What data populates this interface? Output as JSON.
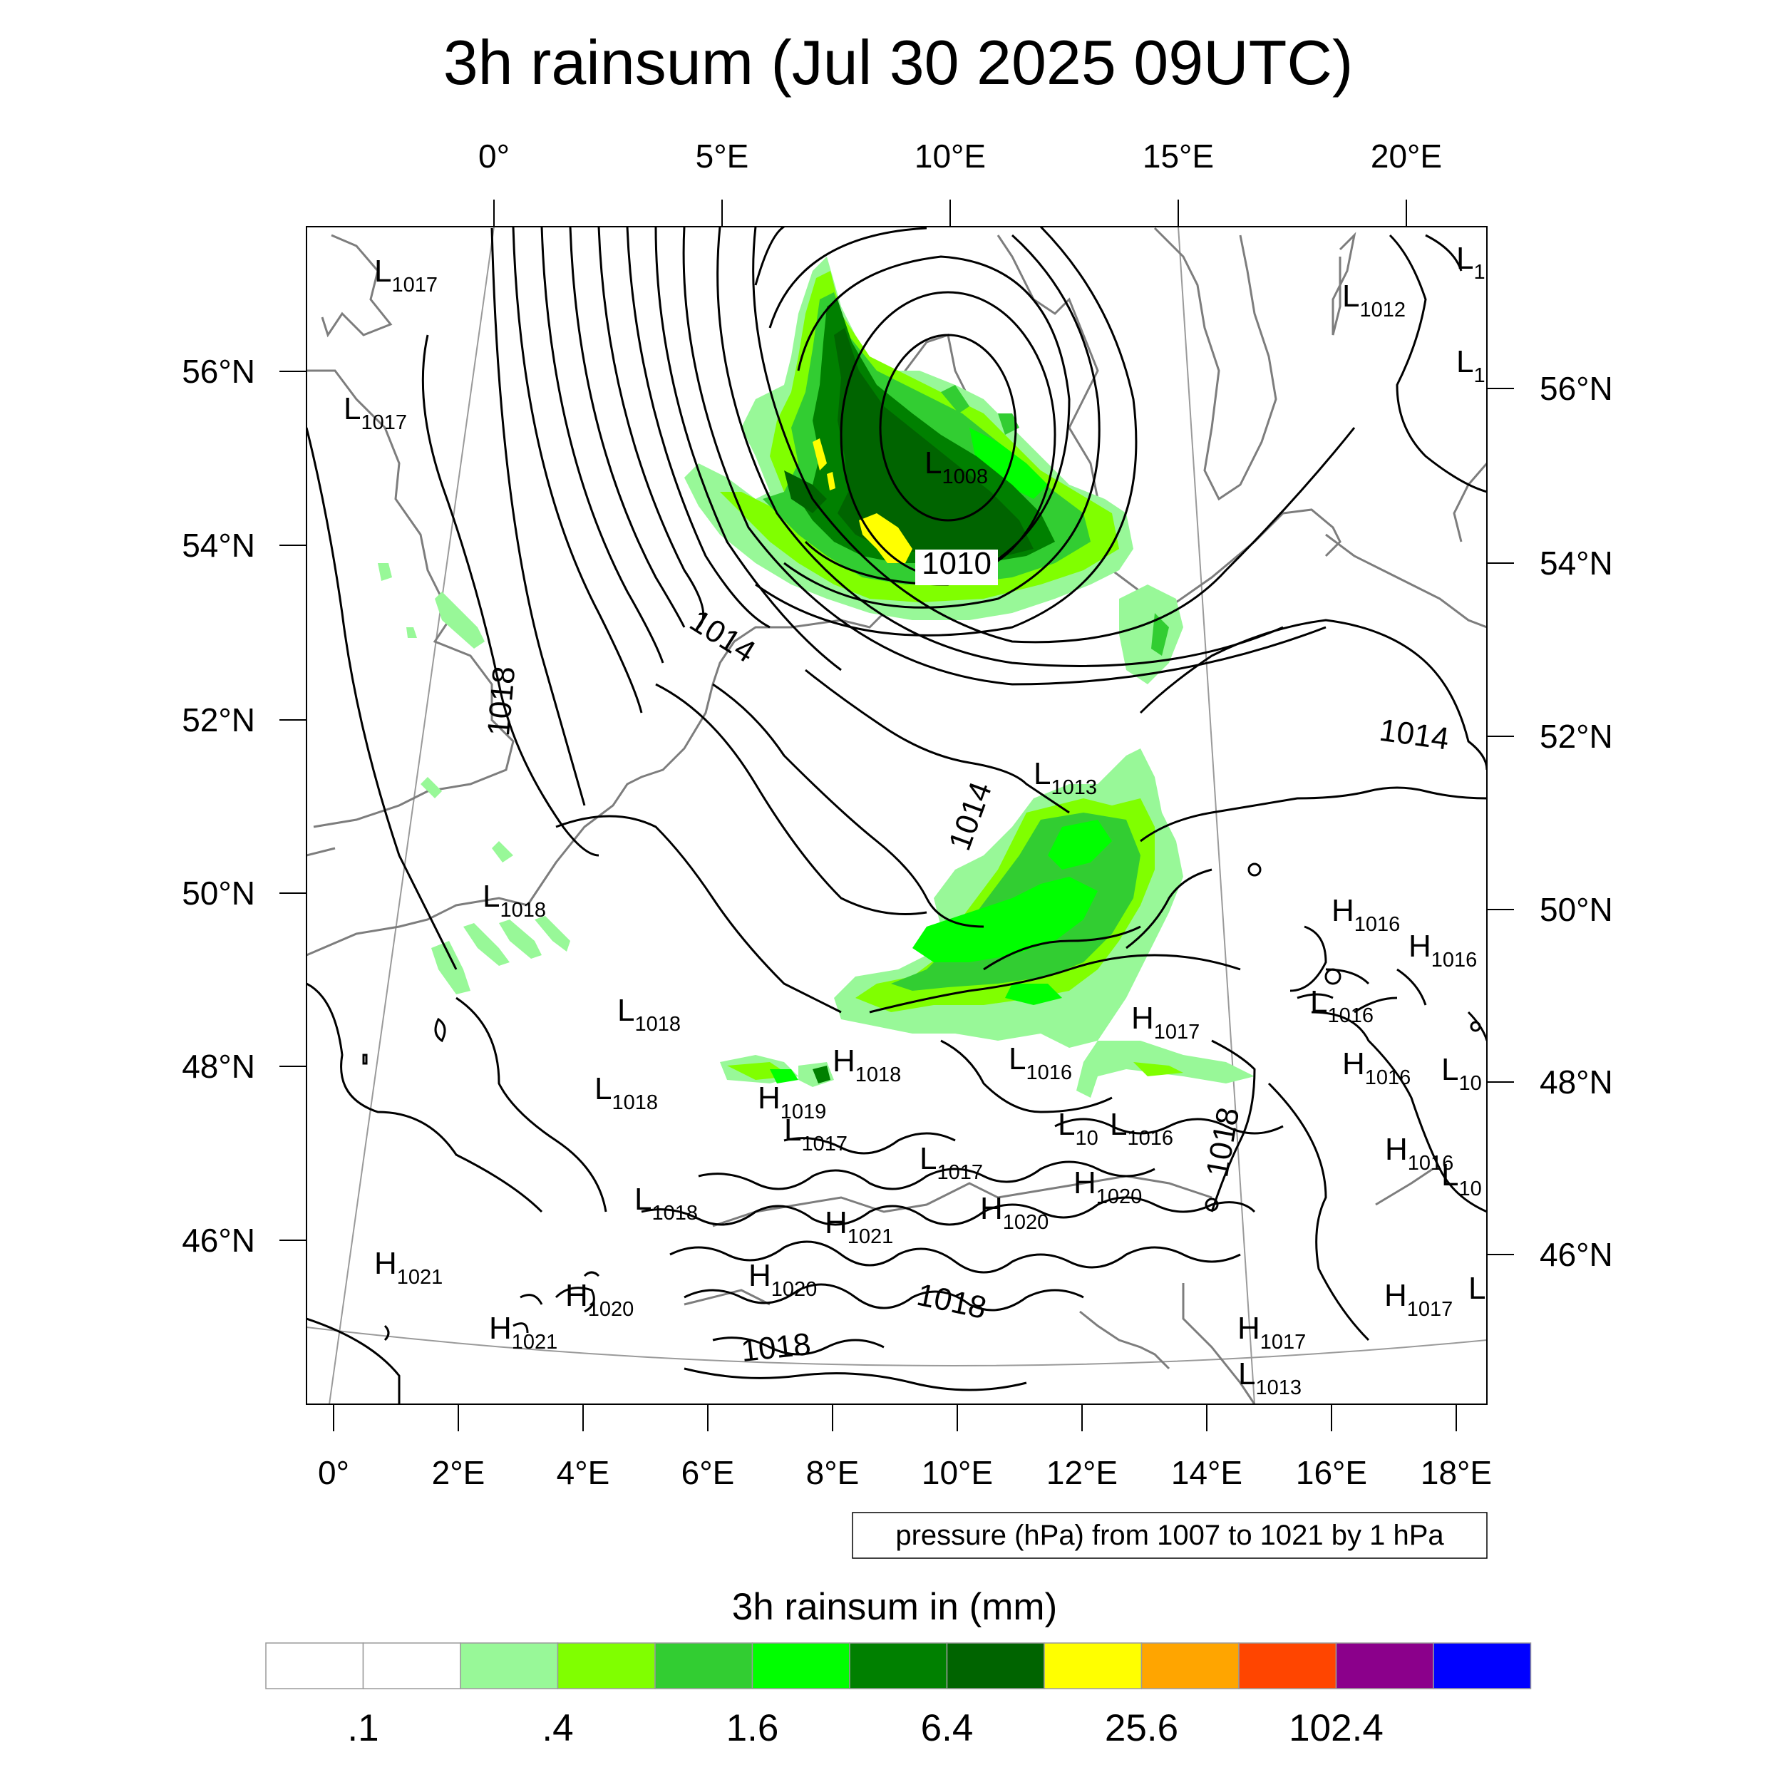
{
  "title": "3h rainsum (Jul 30 2025 09UTC)",
  "top_lon_labels": [
    "0°",
    "5°E",
    "10°E",
    "15°E",
    "20°E"
  ],
  "bottom_lon_labels": [
    "0°",
    "2°E",
    "4°E",
    "6°E",
    "8°E",
    "10°E",
    "12°E",
    "14°E",
    "16°E",
    "18°E"
  ],
  "left_lat_labels": [
    "56°N",
    "54°N",
    "52°N",
    "50°N",
    "48°N",
    "46°N"
  ],
  "right_lat_labels": [
    "56°N",
    "54°N",
    "52°N",
    "50°N",
    "48°N",
    "46°N"
  ],
  "pressure_systems": [
    {
      "letter": "L",
      "value": "1017"
    },
    {
      "letter": "L",
      "value": "1017"
    },
    {
      "letter": "L",
      "value": "1012"
    },
    {
      "letter": "L",
      "value": "1"
    },
    {
      "letter": "L",
      "value": "1"
    },
    {
      "letter": "L",
      "value": "1008"
    },
    {
      "letter": "L",
      "value": "1013"
    },
    {
      "letter": "L",
      "value": "1018"
    },
    {
      "letter": "L",
      "value": "1018"
    },
    {
      "letter": "L",
      "value": "1018"
    },
    {
      "letter": "H",
      "value": "1018"
    },
    {
      "letter": "H",
      "value": "1019"
    },
    {
      "letter": "L",
      "value": "1017"
    },
    {
      "letter": "L",
      "value": "1017"
    },
    {
      "letter": "L",
      "value": "1016"
    },
    {
      "letter": "H",
      "value": "1017"
    },
    {
      "letter": "L",
      "value": "10"
    },
    {
      "letter": "L",
      "value": "1016"
    },
    {
      "letter": "H",
      "value": "1016"
    },
    {
      "letter": "H",
      "value": "1016"
    },
    {
      "letter": "L",
      "value": "1016"
    },
    {
      "letter": "H",
      "value": "1016"
    },
    {
      "letter": "L",
      "value": "10"
    },
    {
      "letter": "H",
      "value": "1016"
    },
    {
      "letter": "L",
      "value": "10"
    },
    {
      "letter": "H",
      "value": "1020"
    },
    {
      "letter": "H",
      "value": "1020"
    },
    {
      "letter": "H",
      "value": "1021"
    },
    {
      "letter": "H",
      "value": "1020"
    },
    {
      "letter": "L",
      "value": "1018"
    },
    {
      "letter": "H",
      "value": "1021"
    },
    {
      "letter": "H",
      "value": "1020"
    },
    {
      "letter": "H",
      "value": "1021"
    },
    {
      "letter": "H",
      "value": "1017"
    },
    {
      "letter": "H",
      "value": "1017"
    },
    {
      "letter": "L",
      "value": "1013"
    },
    {
      "letter": "L",
      "value": ""
    }
  ],
  "contour_labels": [
    "1010",
    "1014",
    "1018",
    "1014",
    "1014",
    "1018",
    "1018",
    "1018"
  ],
  "contour_info": "pressure (hPa) from 1007 to 1021 by 1 hPa",
  "legend": {
    "title": "3h rainsum in (mm)",
    "colors": [
      "#ffffff",
      "#ffffff",
      "#98f898",
      "#80ff00",
      "#32cd32",
      "#00ff00",
      "#008000",
      "#006400",
      "#ffff00",
      "#ffa500",
      "#ff4500",
      "#8b008b",
      "#0000ff"
    ],
    "tick_labels": [
      ".1",
      ".4",
      "1.6",
      "6.4",
      "25.6",
      "102.4"
    ]
  }
}
